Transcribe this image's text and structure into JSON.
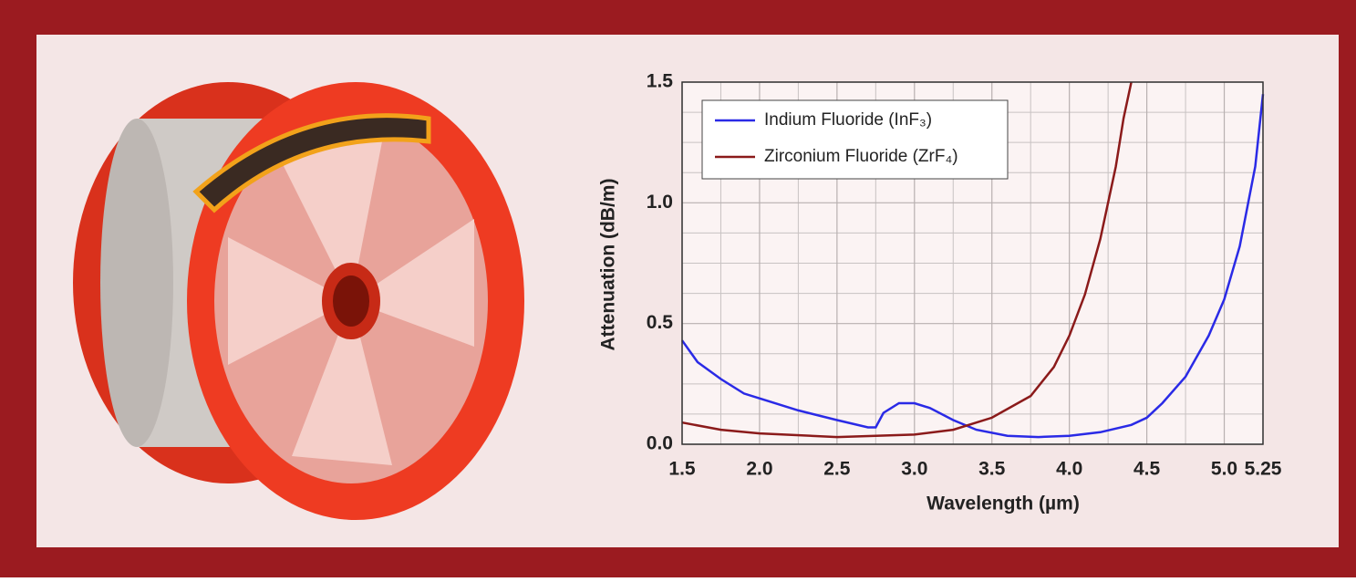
{
  "chart_data": {
    "type": "line",
    "xlabel": "Wavelength (µm)",
    "ylabel": "Attenuation (dB/m)",
    "xlim": [
      1.5,
      5.25
    ],
    "ylim": [
      0,
      1.5
    ],
    "xticks": [
      1.5,
      {
        "value": 2,
        "label": "2.0"
      },
      2.5,
      {
        "value": 3,
        "label": "3.0"
      },
      3.5,
      {
        "value": 4,
        "label": "4.0"
      },
      4.5,
      {
        "value": 5,
        "label": "5.0"
      },
      5.25
    ],
    "yticks": [
      {
        "value": 0,
        "label": "0.0"
      },
      0.5,
      {
        "value": 1,
        "label": "1.0"
      },
      1.5
    ],
    "xminorticks": [
      1.75,
      2.25,
      2.75,
      3.25,
      3.75,
      4.25,
      4.75
    ],
    "yminorticks": [
      0.125,
      0.25,
      0.375,
      0.625,
      0.75,
      0.875,
      1.125,
      1.25,
      1.375
    ],
    "grid": true,
    "legend": "upper left",
    "series": [
      {
        "name": "Indium Fluoride (InF₃)",
        "color": "#2a2ae6",
        "x": [
          1.5,
          1.6,
          1.75,
          1.9,
          2.0,
          2.25,
          2.5,
          2.7,
          2.75,
          2.8,
          2.9,
          3.0,
          3.1,
          3.25,
          3.4,
          3.6,
          3.8,
          4.0,
          4.2,
          4.4,
          4.5,
          4.6,
          4.75,
          4.9,
          5.0,
          5.1,
          5.2,
          5.25
        ],
        "values": [
          0.43,
          0.34,
          0.27,
          0.21,
          0.19,
          0.14,
          0.1,
          0.07,
          0.07,
          0.13,
          0.17,
          0.17,
          0.15,
          0.1,
          0.06,
          0.035,
          0.03,
          0.035,
          0.05,
          0.08,
          0.11,
          0.17,
          0.28,
          0.45,
          0.6,
          0.82,
          1.15,
          1.45
        ]
      },
      {
        "name": "Zirconium Fluoride (ZrF₄)",
        "color": "#8b1a1a",
        "x": [
          1.5,
          1.75,
          2.0,
          2.5,
          3.0,
          3.25,
          3.5,
          3.75,
          3.9,
          4.0,
          4.1,
          4.2,
          4.3,
          4.35,
          4.4
        ],
        "values": [
          0.09,
          0.06,
          0.045,
          0.03,
          0.04,
          0.06,
          0.11,
          0.2,
          0.32,
          0.45,
          0.62,
          0.85,
          1.15,
          1.35,
          1.5
        ]
      }
    ]
  }
}
